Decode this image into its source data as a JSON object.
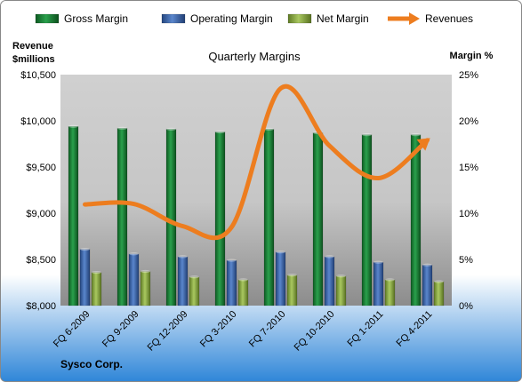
{
  "chart_data": {
    "type": "bar",
    "title": "Quarterly Margins",
    "company": "Sysco Corp.",
    "left_axis_label": "Revenue\n$millions",
    "right_axis_label": "Margin %",
    "categories": [
      "FQ 6-2009",
      "FQ 9-2009",
      "FQ 12-2009",
      "FQ 3-2010",
      "FQ 7-2010",
      "FQ 10-2010",
      "FQ 1-2011",
      "FQ 4-2011"
    ],
    "left_ylim": [
      8000,
      10500
    ],
    "left_ticks": [
      "$8,000",
      "$8,500",
      "$9,000",
      "$9,500",
      "$10,000",
      "$10,500"
    ],
    "right_ylim": [
      0,
      25
    ],
    "right_ticks": [
      "0%",
      "5%",
      "10%",
      "15%",
      "20%",
      "25%"
    ],
    "series": [
      {
        "name": "Gross Margin",
        "type": "bar",
        "axis": "right",
        "color": "#1e8a3c",
        "values": [
          19.4,
          19.2,
          19.1,
          18.8,
          19.1,
          18.7,
          18.5,
          18.5
        ]
      },
      {
        "name": "Operating Margin",
        "type": "bar",
        "axis": "right",
        "color": "#3f6cb5",
        "values": [
          6.1,
          5.6,
          5.3,
          4.9,
          5.8,
          5.3,
          4.7,
          4.4
        ]
      },
      {
        "name": "Net Margin",
        "type": "bar",
        "axis": "right",
        "color": "#8fb04a",
        "values": [
          3.6,
          3.7,
          3.1,
          2.8,
          3.3,
          3.2,
          2.8,
          2.6
        ]
      },
      {
        "name": "Revenues",
        "type": "line",
        "axis": "left",
        "color": "#ed7d1f",
        "values": [
          9095,
          9100,
          8860,
          8850,
          10350,
          9730,
          9380,
          9790
        ]
      }
    ],
    "legend_position": "top",
    "grid": false
  }
}
